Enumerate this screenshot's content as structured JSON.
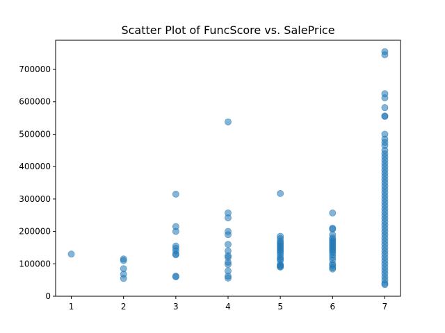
{
  "chart_data": {
    "type": "scatter",
    "title": "Scatter Plot of FuncScore vs. SalePrice",
    "xlabel": "",
    "ylabel": "",
    "xlim": [
      0.7,
      7.3
    ],
    "ylim": [
      0,
      790000
    ],
    "x_ticks": [
      1,
      2,
      3,
      4,
      5,
      6,
      7
    ],
    "y_ticks": [
      0,
      100000,
      200000,
      300000,
      400000,
      500000,
      600000,
      700000
    ],
    "grid": false,
    "point_color": "#1f77b4",
    "point_alpha": 0.55,
    "series": [
      {
        "points": [
          [
            1,
            130000
          ],
          [
            2,
            115000
          ],
          [
            2,
            110000
          ],
          [
            2,
            85000
          ],
          [
            2,
            68000
          ],
          [
            2,
            55000
          ],
          [
            3,
            315000
          ],
          [
            3,
            215000
          ],
          [
            3,
            200000
          ],
          [
            3,
            155000
          ],
          [
            3,
            148000
          ],
          [
            3,
            140000
          ],
          [
            3,
            130000
          ],
          [
            3,
            128000
          ],
          [
            3,
            62000
          ],
          [
            3,
            60000
          ],
          [
            4,
            538000
          ],
          [
            4,
            257000
          ],
          [
            4,
            242000
          ],
          [
            4,
            200000
          ],
          [
            4,
            190000
          ],
          [
            4,
            160000
          ],
          [
            4,
            140000
          ],
          [
            4,
            125000
          ],
          [
            4,
            120000
          ],
          [
            4,
            105000
          ],
          [
            4,
            98000
          ],
          [
            4,
            78000
          ],
          [
            4,
            62000
          ],
          [
            4,
            56000
          ],
          [
            5,
            317000
          ],
          [
            5,
            185000
          ],
          [
            5,
            178000
          ],
          [
            5,
            170000
          ],
          [
            5,
            165000
          ],
          [
            5,
            160000
          ],
          [
            5,
            155000
          ],
          [
            5,
            150000
          ],
          [
            5,
            145000
          ],
          [
            5,
            140000
          ],
          [
            5,
            135000
          ],
          [
            5,
            128000
          ],
          [
            5,
            120000
          ],
          [
            5,
            115000
          ],
          [
            5,
            110000
          ],
          [
            5,
            98000
          ],
          [
            5,
            95000
          ],
          [
            5,
            92000
          ],
          [
            5,
            90000
          ],
          [
            6,
            257000
          ],
          [
            6,
            210000
          ],
          [
            6,
            207000
          ],
          [
            6,
            190000
          ],
          [
            6,
            180000
          ],
          [
            6,
            175000
          ],
          [
            6,
            170000
          ],
          [
            6,
            165000
          ],
          [
            6,
            160000
          ],
          [
            6,
            155000
          ],
          [
            6,
            150000
          ],
          [
            6,
            145000
          ],
          [
            6,
            140000
          ],
          [
            6,
            135000
          ],
          [
            6,
            128000
          ],
          [
            6,
            120000
          ],
          [
            6,
            112000
          ],
          [
            6,
            100000
          ],
          [
            6,
            95000
          ],
          [
            6,
            88000
          ],
          [
            6,
            84000
          ],
          [
            7,
            755000
          ],
          [
            7,
            745000
          ],
          [
            7,
            625000
          ],
          [
            7,
            612000
          ],
          [
            7,
            582000
          ],
          [
            7,
            556000
          ],
          [
            7,
            555000
          ],
          [
            7,
            500000
          ],
          [
            7,
            485000
          ],
          [
            7,
            475000
          ],
          [
            7,
            465000
          ],
          [
            7,
            450000
          ],
          [
            7,
            440000
          ],
          [
            7,
            430000
          ],
          [
            7,
            420000
          ],
          [
            7,
            410000
          ],
          [
            7,
            400000
          ],
          [
            7,
            390000
          ],
          [
            7,
            380000
          ],
          [
            7,
            370000
          ],
          [
            7,
            360000
          ],
          [
            7,
            350000
          ],
          [
            7,
            340000
          ],
          [
            7,
            330000
          ],
          [
            7,
            320000
          ],
          [
            7,
            310000
          ],
          [
            7,
            300000
          ],
          [
            7,
            290000
          ],
          [
            7,
            280000
          ],
          [
            7,
            270000
          ],
          [
            7,
            260000
          ],
          [
            7,
            250000
          ],
          [
            7,
            240000
          ],
          [
            7,
            230000
          ],
          [
            7,
            220000
          ],
          [
            7,
            210000
          ],
          [
            7,
            200000
          ],
          [
            7,
            190000
          ],
          [
            7,
            180000
          ],
          [
            7,
            170000
          ],
          [
            7,
            160000
          ],
          [
            7,
            150000
          ],
          [
            7,
            140000
          ],
          [
            7,
            130000
          ],
          [
            7,
            120000
          ],
          [
            7,
            110000
          ],
          [
            7,
            100000
          ],
          [
            7,
            90000
          ],
          [
            7,
            80000
          ],
          [
            7,
            70000
          ],
          [
            7,
            60000
          ],
          [
            7,
            50000
          ],
          [
            7,
            40000
          ],
          [
            7,
            36000
          ]
        ]
      }
    ]
  }
}
